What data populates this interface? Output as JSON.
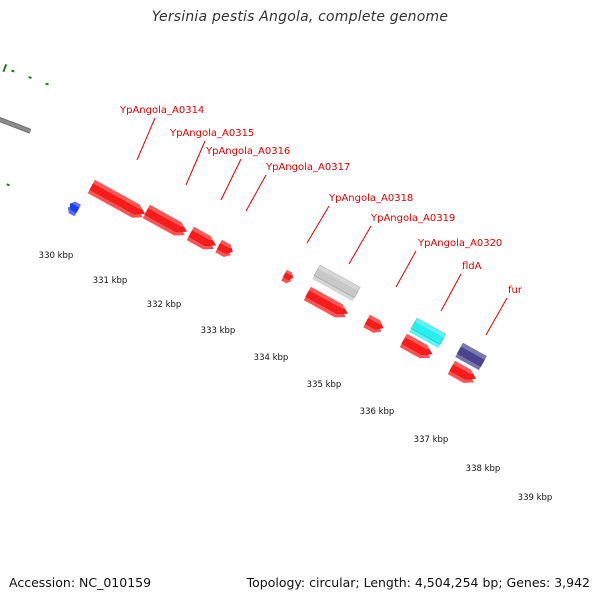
{
  "title": "Yersinia pestis Angola, complete genome",
  "footer": {
    "accession": "Accession: NC_010159",
    "stats": "Topology: circular; Length: 4,504,254 bp; Genes: 3,942"
  },
  "colors": {
    "backbone": "#8c8c8c",
    "tick": "#1f7a1f",
    "gene_red": "#ff1a1a",
    "gene_blue": "#1a3cff",
    "gene_gray": "#c8c8c8",
    "gene_cyan": "#26f0f0",
    "gene_navy": "#4a4490",
    "label": "#e00000",
    "kbp_label": "#111111"
  },
  "kbp_labels": [
    "330 kbp",
    "331 kbp",
    "332 kbp",
    "333 kbp",
    "334 kbp",
    "335 kbp",
    "336 kbp",
    "337 kbp",
    "338 kbp",
    "339 kbp"
  ],
  "gene_labels": [
    "YpAngola_A0314",
    "YpAngola_A0315",
    "YpAngola_A0316",
    "YpAngola_A0317",
    "YpAngola_A0318",
    "YpAngola_A0319",
    "YpAngola_A0320",
    "fldA",
    "fur"
  ]
}
